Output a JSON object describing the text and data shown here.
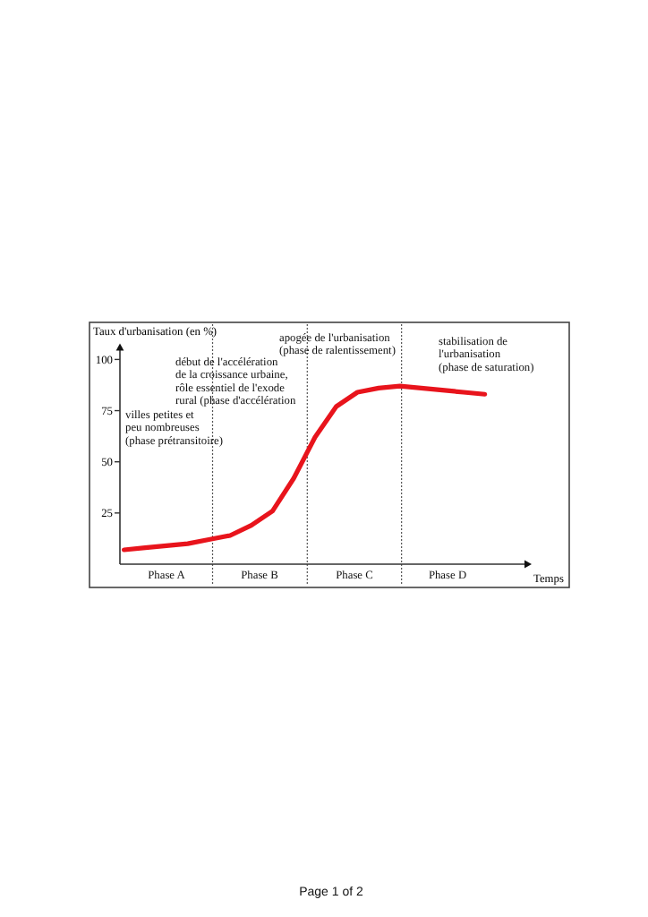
{
  "chart_data": {
    "type": "line",
    "ylabel": "Taux d'urbanisation (en %)",
    "xlabel": "Temps",
    "categories": [
      null,
      null,
      null,
      null,
      null,
      null,
      null,
      null,
      null,
      null,
      null,
      null,
      null,
      null,
      null,
      null,
      null,
      null
    ],
    "series": [
      {
        "color": "#e8141c",
        "values": [
          7,
          8,
          9,
          10,
          12,
          14,
          19,
          26,
          42,
          62,
          77,
          84,
          86,
          87,
          86,
          85,
          84,
          83
        ]
      }
    ],
    "ylim": [
      0,
      107
    ],
    "yticks": [
      25,
      50,
      75,
      100
    ],
    "tick_labels": "y",
    "grid": false,
    "marker": "none",
    "line_style": "solid",
    "annotations": [
      "villes petites et\npeu nombreuses\n(phase prétransitoire)",
      "début de l'accélération\nde la croissance urbaine,\nrôle essentiel de l'exode\nrural (phase d'accélération",
      "apogée de l'urbanisation\n(phase de ralentissement)",
      "stabilisation de\nl'urbanisation\n(phase de saturation)",
      "Phase A",
      "Phase B",
      "Phase C",
      "Phase D",
      "Page 1 of 2"
    ]
  }
}
